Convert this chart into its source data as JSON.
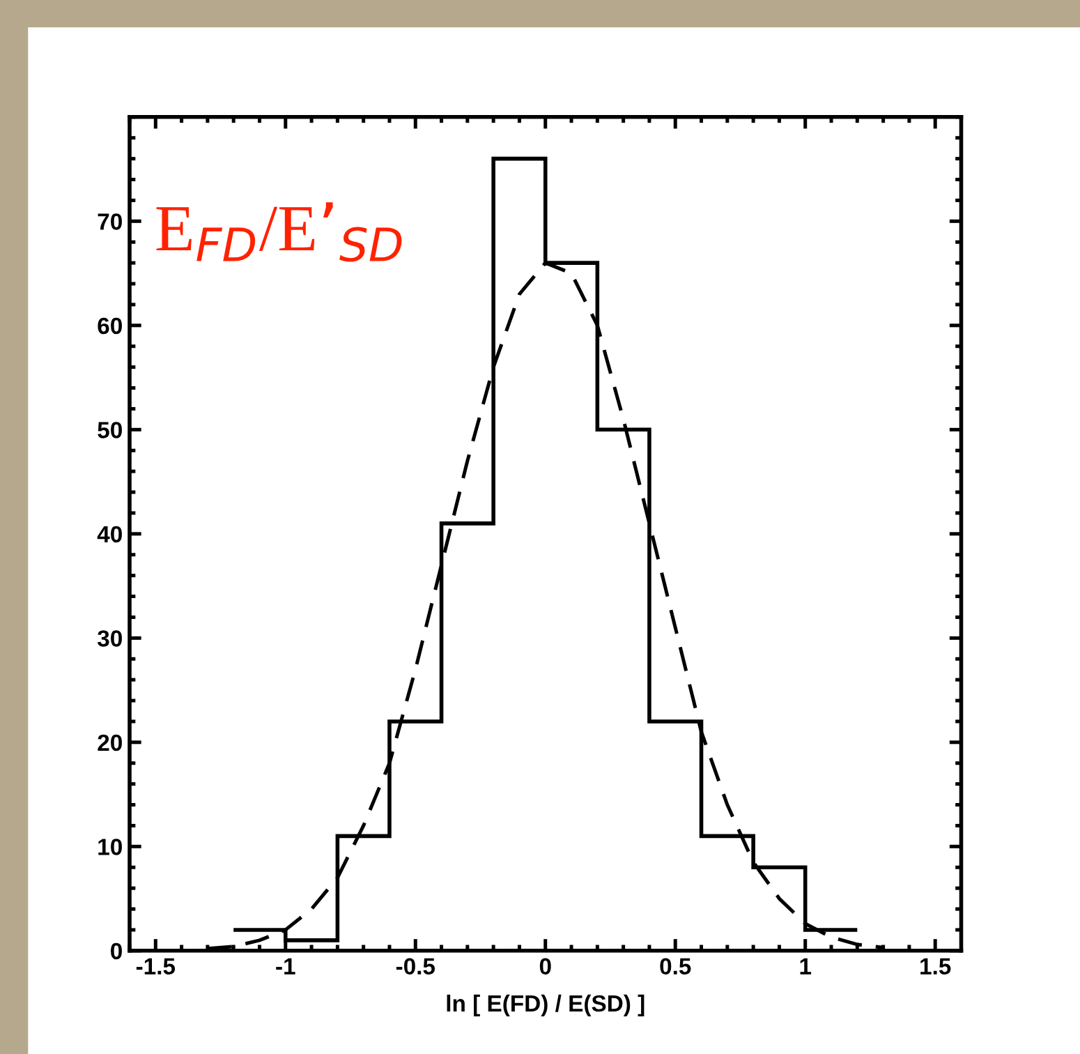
{
  "chart_data": {
    "type": "histogram",
    "xlabel": "ln [ E(FD) / E(SD) ]",
    "annotations": [
      "E$_{FD}$/E’$_{SD}$"
    ],
    "xlim": [
      -1.6,
      1.6
    ],
    "xticks": [
      -1.5,
      -1,
      -0.5,
      0,
      0.5,
      1,
      1.5
    ],
    "ylim": [
      0,
      80
    ],
    "yticks": [
      0,
      10,
      20,
      30,
      40,
      50,
      60,
      70
    ],
    "grid": false,
    "legend": false,
    "series": [
      {
        "color": "#000000",
        "bins": [
          -1.2,
          -1.0,
          -0.8,
          -0.6,
          -0.4,
          -0.2,
          0,
          0.2,
          0.4,
          0.6,
          0.8,
          1.0,
          1.2
        ],
        "values": [
          2,
          1,
          11,
          22,
          41,
          76,
          66,
          50,
          22,
          11,
          8,
          2
        ]
      },
      {
        "type": "line",
        "color": "#000000",
        "line_style": "dashed",
        "x": [
          -1.3,
          -1.2,
          -1.1,
          -1.0,
          -0.9,
          -0.8,
          -0.7,
          -0.6,
          -0.5,
          -0.4,
          -0.3,
          -0.2,
          -0.1,
          0,
          0.1,
          0.2,
          0.3,
          0.4,
          0.5,
          0.6,
          0.7,
          0.8,
          0.9,
          1.0,
          1.1,
          1.2,
          1.3
        ],
        "values": [
          0.2,
          0.4,
          1,
          2,
          4,
          7,
          12,
          18,
          27,
          37,
          47,
          56,
          63,
          66,
          65,
          60,
          51,
          41,
          31,
          21,
          14,
          8.5,
          5,
          2.6,
          1.3,
          0.6,
          0.3
        ]
      }
    ]
  }
}
